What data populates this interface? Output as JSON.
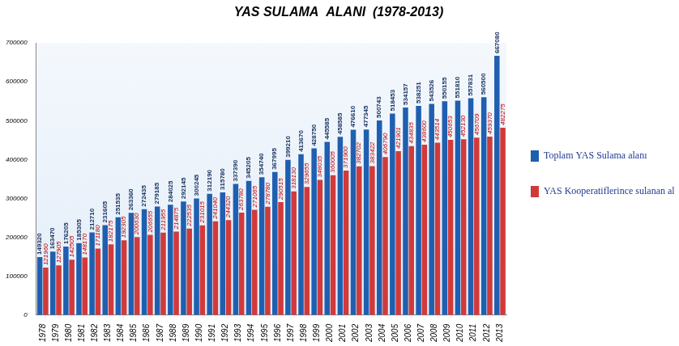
{
  "chart_data": {
    "type": "bar",
    "title": "YAS SULAMA  ALANI  (1978-2013)",
    "categories": [
      "1978",
      "1979",
      "1980",
      "1981",
      "1982",
      "1983",
      "1984",
      "1985",
      "1986",
      "1987",
      "1988",
      "1989",
      "1990",
      "1991",
      "1992",
      "1993",
      "1994",
      "1995",
      "1996",
      "1997",
      "1998",
      "1999",
      "2000",
      "2001",
      "2002",
      "2003",
      "2004",
      "2005",
      "2006",
      "2007",
      "2008",
      "2009",
      "2010",
      "2011",
      "2012",
      "2013"
    ],
    "series": [
      {
        "name": "Toplam YAS Sulama alanı",
        "color": "#1f5fb0",
        "values": [
          149320,
          163470,
          176205,
          185305,
          212710,
          231605,
          251535,
          263360,
          272435,
          279185,
          284025,
          292145,
          300245,
          312190,
          315780,
          337390,
          345205,
          354740,
          367995,
          399210,
          413670,
          428750,
          445585,
          458585,
          476610,
          477345,
          500743,
          518453,
          534157,
          538251,
          543526,
          550155,
          551810,
          557831,
          560500,
          667080
        ]
      },
      {
        "name": "YAS Kooperatiflerince sulanan alan",
        "color": "#d03a3a",
        "values": [
          121960,
          127905,
          142505,
          148170,
          171180,
          182175,
          192305,
          200630,
          206655,
          211955,
          214875,
          222535,
          231015,
          241040,
          244320,
          263780,
          271065,
          278780,
          290515,
          318130,
          329655,
          348035,
          360005,
          371900,
          382702,
          383422,
          406790,
          421901,
          434835,
          438600,
          443514,
          450653,
          452130,
          456709,
          459370,
          482275
        ]
      }
    ],
    "ylim": [
      0,
      700000
    ],
    "yticks": [
      0,
      100000,
      200000,
      300000,
      400000,
      500000,
      600000,
      700000
    ],
    "grid": false,
    "legend": "right",
    "data_labels": true
  }
}
